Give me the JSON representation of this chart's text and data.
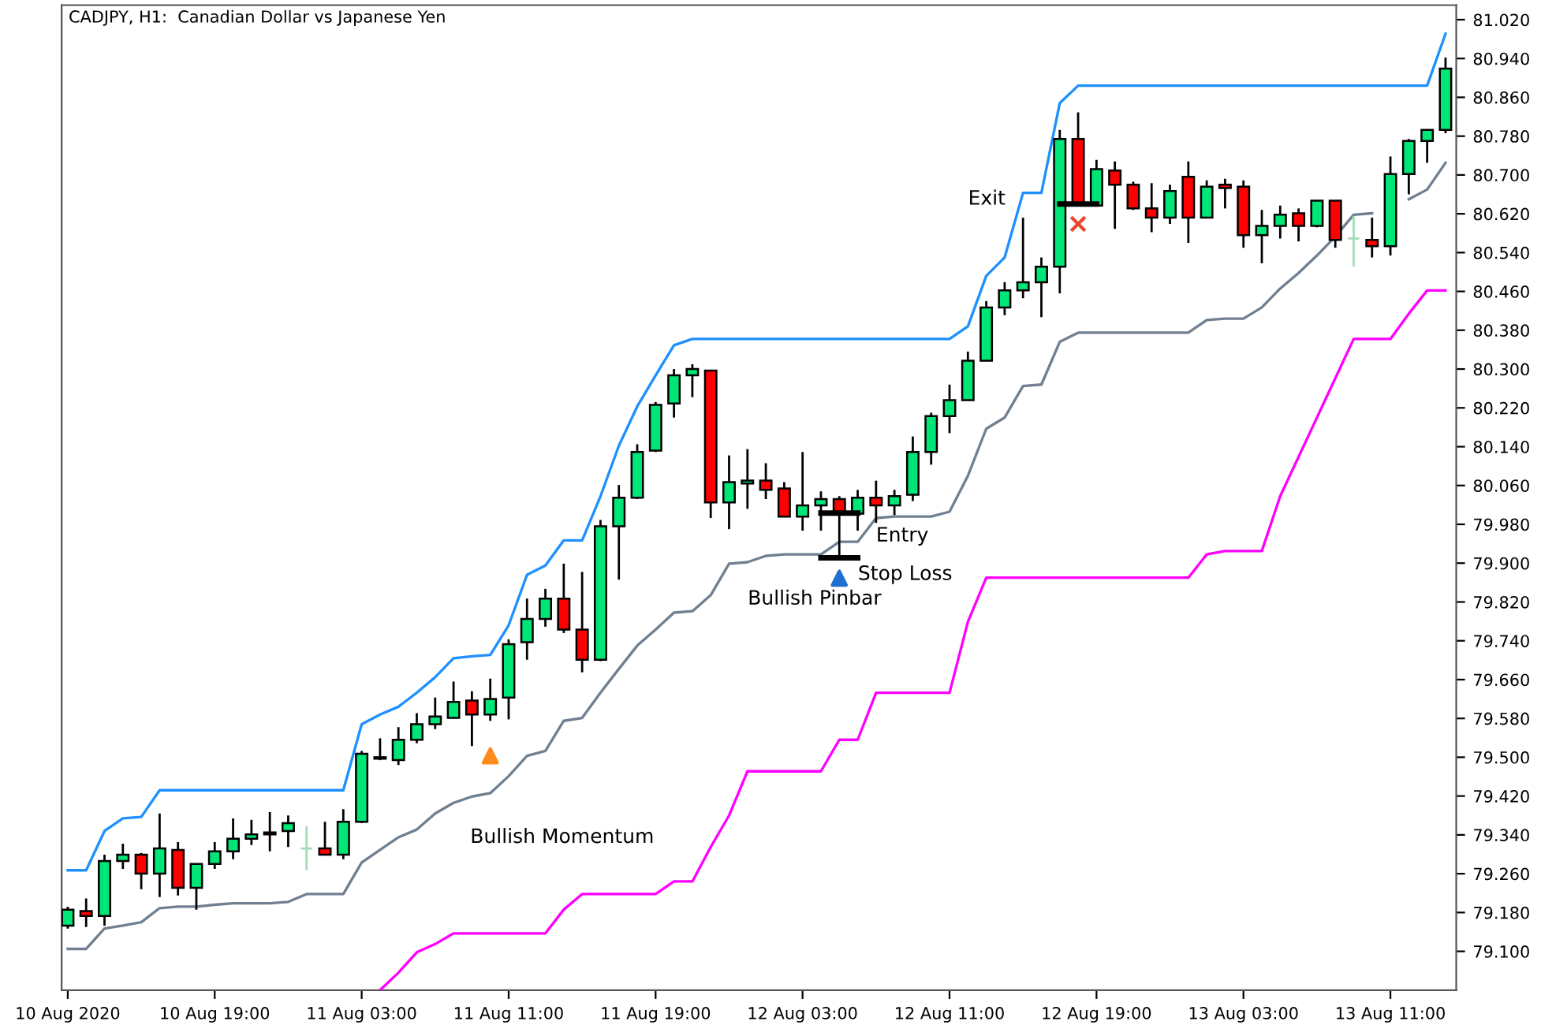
{
  "chart_data": {
    "type": "candlestick",
    "title": "CADJPY, H1:  Canadian Dollar vs Japanese Yen",
    "x": [
      "2020-08-10T11:00",
      "2020-08-10T12:00",
      "2020-08-10T13:00",
      "2020-08-10T14:00",
      "2020-08-10T15:00",
      "2020-08-10T16:00",
      "2020-08-10T17:00",
      "2020-08-10T18:00",
      "2020-08-10T19:00",
      "2020-08-10T20:00",
      "2020-08-10T21:00",
      "2020-08-10T22:00",
      "2020-08-10T23:00",
      "2020-08-11T00:00",
      "2020-08-11T01:00",
      "2020-08-11T02:00",
      "2020-08-11T03:00",
      "2020-08-11T04:00",
      "2020-08-11T05:00",
      "2020-08-11T06:00",
      "2020-08-11T07:00",
      "2020-08-11T08:00",
      "2020-08-11T09:00",
      "2020-08-11T10:00",
      "2020-08-11T11:00",
      "2020-08-11T12:00",
      "2020-08-11T13:00",
      "2020-08-11T14:00",
      "2020-08-11T15:00",
      "2020-08-11T16:00",
      "2020-08-11T17:00",
      "2020-08-11T18:00",
      "2020-08-11T19:00",
      "2020-08-11T20:00",
      "2020-08-11T21:00",
      "2020-08-11T22:00",
      "2020-08-11T23:00",
      "2020-08-12T00:00",
      "2020-08-12T01:00",
      "2020-08-12T02:00",
      "2020-08-12T03:00",
      "2020-08-12T04:00",
      "2020-08-12T05:00",
      "2020-08-12T06:00",
      "2020-08-12T07:00",
      "2020-08-12T08:00",
      "2020-08-12T09:00",
      "2020-08-12T10:00",
      "2020-08-12T11:00",
      "2020-08-12T12:00",
      "2020-08-12T13:00",
      "2020-08-12T14:00",
      "2020-08-12T15:00",
      "2020-08-12T16:00",
      "2020-08-12T17:00",
      "2020-08-12T18:00",
      "2020-08-12T19:00",
      "2020-08-12T20:00",
      "2020-08-12T21:00",
      "2020-08-12T22:00",
      "2020-08-12T23:00",
      "2020-08-13T00:00",
      "2020-08-13T01:00",
      "2020-08-13T02:00",
      "2020-08-13T03:00",
      "2020-08-13T04:00",
      "2020-08-13T05:00",
      "2020-08-13T06:00",
      "2020-08-13T07:00",
      "2020-08-13T08:00",
      "2020-08-13T09:00",
      "2020-08-13T10:00",
      "2020-08-13T11:00",
      "2020-08-13T12:00",
      "2020-08-13T13:00",
      "2020-08-13T14:00"
    ],
    "ohlc": [
      [
        79.153,
        79.192,
        79.147,
        79.186
      ],
      [
        79.183,
        79.209,
        79.15,
        79.173
      ],
      [
        79.173,
        79.299,
        79.153,
        79.286
      ],
      [
        79.286,
        79.322,
        79.27,
        79.299
      ],
      [
        79.299,
        79.303,
        79.228,
        79.26
      ],
      [
        79.26,
        79.384,
        79.212,
        79.312
      ],
      [
        79.309,
        79.325,
        79.215,
        79.231
      ],
      [
        79.231,
        79.28,
        79.186,
        79.28
      ],
      [
        79.28,
        79.325,
        79.27,
        79.306
      ],
      [
        79.306,
        79.374,
        79.29,
        79.332
      ],
      [
        79.332,
        79.371,
        79.319,
        79.341
      ],
      [
        79.341,
        79.387,
        79.306,
        79.345
      ],
      [
        79.348,
        79.38,
        79.315,
        79.364
      ],
      [
        79.312,
        79.358,
        79.267,
        79.312
      ],
      [
        79.312,
        79.367,
        79.299,
        79.299
      ],
      [
        79.299,
        79.393,
        79.29,
        79.367
      ],
      [
        79.367,
        79.513,
        79.364,
        79.507
      ],
      [
        79.5,
        79.539,
        79.494,
        79.497
      ],
      [
        79.494,
        79.562,
        79.484,
        79.536
      ],
      [
        79.536,
        79.591,
        79.529,
        79.568
      ],
      [
        79.568,
        79.623,
        79.558,
        79.584
      ],
      [
        79.581,
        79.656,
        79.581,
        79.614
      ],
      [
        79.617,
        79.636,
        79.523,
        79.588
      ],
      [
        79.588,
        79.662,
        79.575,
        79.62
      ],
      [
        79.623,
        79.743,
        79.578,
        79.733
      ],
      [
        79.737,
        79.827,
        79.701,
        79.785
      ],
      [
        79.785,
        79.847,
        79.769,
        79.827
      ],
      [
        79.827,
        79.899,
        79.756,
        79.763
      ],
      [
        79.763,
        79.882,
        79.675,
        79.701
      ],
      [
        79.701,
        79.989,
        79.698,
        79.976
      ],
      [
        79.976,
        80.061,
        79.866,
        80.035
      ],
      [
        80.035,
        80.145,
        80.032,
        80.129
      ],
      [
        80.132,
        80.232,
        80.129,
        80.226
      ],
      [
        80.229,
        80.3,
        80.2,
        80.287
      ],
      [
        80.287,
        80.31,
        80.242,
        80.3
      ],
      [
        80.297,
        80.297,
        79.993,
        80.025
      ],
      [
        80.025,
        80.122,
        79.97,
        80.067
      ],
      [
        80.064,
        80.135,
        80.012,
        80.07
      ],
      [
        80.07,
        80.106,
        80.032,
        80.051
      ],
      [
        80.054,
        80.067,
        79.996,
        79.996
      ],
      [
        79.996,
        80.129,
        79.967,
        80.019
      ],
      [
        80.019,
        80.048,
        79.967,
        80.032
      ],
      [
        80.032,
        80.038,
        79.915,
        80.006
      ],
      [
        80.002,
        80.051,
        79.967,
        80.035
      ],
      [
        80.035,
        80.07,
        79.983,
        80.019
      ],
      [
        80.019,
        80.051,
        79.999,
        80.038
      ],
      [
        80.041,
        80.161,
        80.028,
        80.129
      ],
      [
        80.129,
        80.21,
        80.103,
        80.203
      ],
      [
        80.203,
        80.268,
        80.168,
        80.236
      ],
      [
        80.236,
        80.336,
        80.236,
        80.317
      ],
      [
        80.317,
        80.44,
        80.317,
        80.427
      ],
      [
        80.427,
        80.479,
        80.411,
        80.462
      ],
      [
        80.462,
        80.612,
        80.446,
        80.479
      ],
      [
        80.479,
        80.53,
        80.407,
        80.511
      ],
      [
        80.511,
        80.793,
        80.456,
        80.774
      ],
      [
        80.774,
        80.829,
        80.641,
        80.641
      ],
      [
        80.637,
        80.731,
        80.637,
        80.712
      ],
      [
        80.709,
        80.728,
        80.589,
        80.68
      ],
      [
        80.68,
        80.686,
        80.628,
        80.631
      ],
      [
        80.631,
        80.683,
        80.582,
        80.612
      ],
      [
        80.612,
        80.68,
        80.599,
        80.667
      ],
      [
        80.696,
        80.728,
        80.56,
        80.612
      ],
      [
        80.612,
        80.689,
        80.612,
        80.676
      ],
      [
        80.68,
        80.692,
        80.631,
        80.673
      ],
      [
        80.676,
        80.689,
        80.55,
        80.576
      ],
      [
        80.576,
        80.628,
        80.518,
        80.595
      ],
      [
        80.595,
        80.637,
        80.569,
        80.618
      ],
      [
        80.621,
        80.631,
        80.563,
        80.595
      ],
      [
        80.595,
        80.647,
        80.592,
        80.647
      ],
      [
        80.647,
        80.647,
        80.55,
        80.566
      ],
      [
        80.569,
        80.615,
        80.511,
        80.569
      ],
      [
        80.566,
        80.612,
        80.53,
        80.553
      ],
      [
        80.553,
        80.738,
        80.534,
        80.702
      ],
      [
        80.702,
        80.774,
        80.66,
        80.77
      ],
      [
        80.77,
        80.793,
        80.725,
        80.793
      ],
      [
        80.793,
        80.942,
        80.786,
        80.919
      ]
    ],
    "colors": [
      "#00e676",
      "#ff0000",
      "#00e676",
      "#00e676",
      "#ff0000",
      "#00e676",
      "#ff0000",
      "#00e676",
      "#00e676",
      "#00e676",
      "#00e676",
      "#00e676",
      "#00e676",
      "#a3dcb8",
      "#ff0000",
      "#00e676",
      "#00e676",
      "#ff0000",
      "#00e676",
      "#00e676",
      "#00e676",
      "#00e676",
      "#ff0000",
      "#00e676",
      "#00e676",
      "#00e676",
      "#00e676",
      "#ff0000",
      "#ff0000",
      "#00e676",
      "#00e676",
      "#00e676",
      "#00e676",
      "#00e676",
      "#00e676",
      "#ff0000",
      "#00e676",
      "#00e676",
      "#ff0000",
      "#ff0000",
      "#00e676",
      "#00e676",
      "#ff0000",
      "#00e676",
      "#ff0000",
      "#00e676",
      "#00e676",
      "#00e676",
      "#00e676",
      "#00e676",
      "#00e676",
      "#00e676",
      "#00e676",
      "#00e676",
      "#00e676",
      "#ff0000",
      "#00e676",
      "#ff0000",
      "#ff0000",
      "#ff0000",
      "#00e676",
      "#ff0000",
      "#00e676",
      "#ff0000",
      "#ff0000",
      "#00e676",
      "#00e676",
      "#ff0000",
      "#00e676",
      "#ff0000",
      "#a3dcb8",
      "#ff0000",
      "#00e676",
      "#00e676",
      "#00e676",
      "#00e676"
    ],
    "series": [
      {
        "type": "line",
        "color": "#1e90ff",
        "values": [
          79.267,
          79.267,
          79.348,
          79.374,
          79.377,
          79.432,
          79.432,
          79.432,
          79.432,
          79.432,
          79.432,
          79.432,
          79.432,
          79.432,
          79.432,
          79.432,
          79.568,
          79.588,
          79.604,
          79.633,
          79.665,
          79.704,
          79.708,
          79.711,
          79.772,
          79.876,
          79.895,
          79.947,
          79.947,
          80.038,
          80.142,
          80.223,
          80.287,
          80.349,
          80.362,
          80.362,
          80.362,
          80.362,
          80.362,
          80.362,
          80.362,
          80.362,
          80.362,
          80.362,
          80.362,
          80.362,
          80.362,
          80.362,
          80.362,
          80.388,
          80.492,
          80.53,
          80.663,
          80.663,
          80.848,
          80.884,
          80.884,
          80.884,
          80.884,
          80.884,
          80.884,
          80.884,
          80.884,
          80.884,
          80.884,
          80.884,
          80.884,
          80.884,
          80.884,
          80.884,
          80.884,
          80.884,
          80.884,
          80.884,
          80.884,
          80.991
        ]
      },
      {
        "type": "line",
        "color": "#708090",
        "values": [
          79.105,
          79.105,
          79.147,
          79.153,
          79.16,
          79.189,
          79.192,
          79.192,
          79.196,
          79.199,
          79.199,
          79.199,
          79.202,
          79.218,
          79.218,
          79.218,
          79.283,
          79.309,
          79.335,
          79.351,
          79.384,
          79.406,
          79.419,
          79.426,
          79.461,
          79.503,
          79.513,
          79.575,
          79.581,
          79.633,
          79.682,
          79.73,
          79.763,
          79.798,
          79.801,
          79.834,
          79.899,
          79.902,
          79.915,
          79.918,
          79.918,
          79.918,
          79.944,
          79.944,
          79.993,
          79.996,
          79.996,
          79.996,
          80.006,
          80.08,
          80.177,
          80.2,
          80.265,
          80.268,
          80.356,
          80.375,
          80.375,
          80.375,
          80.375,
          80.375,
          80.375,
          80.375,
          80.401,
          80.404,
          80.404,
          80.427,
          80.466,
          80.498,
          80.534,
          80.573,
          80.618,
          80.621,
          null,
          80.65,
          80.67,
          80.725
        ]
      },
      {
        "type": "line",
        "color": "#ff00ff",
        "values": [
          null,
          null,
          null,
          null,
          null,
          null,
          null,
          null,
          null,
          null,
          null,
          null,
          null,
          null,
          null,
          null,
          null,
          79.02,
          79.056,
          79.098,
          79.115,
          79.137,
          79.137,
          79.137,
          79.137,
          79.137,
          79.137,
          79.186,
          79.218,
          79.218,
          79.218,
          79.218,
          79.218,
          79.244,
          79.244,
          79.315,
          79.38,
          79.471,
          79.471,
          79.471,
          79.471,
          79.471,
          79.536,
          79.536,
          79.633,
          79.633,
          79.633,
          79.633,
          79.633,
          79.779,
          79.87,
          79.87,
          79.87,
          79.87,
          79.87,
          79.87,
          79.87,
          79.87,
          79.87,
          79.87,
          79.87,
          79.87,
          79.918,
          79.925,
          79.925,
          79.925,
          80.038,
          80.119,
          80.2,
          80.281,
          80.362,
          80.362,
          80.362,
          80.414,
          80.462,
          80.462
        ]
      },
      {
        "type": "line",
        "color": "#000000",
        "x": [
          "2020-08-12T04:00",
          "2020-08-12T06:00"
        ],
        "values": [
          80.003,
          80.003
        ]
      },
      {
        "type": "line",
        "color": "#000000",
        "x": [
          "2020-08-12T04:00",
          "2020-08-12T06:00"
        ],
        "values": [
          79.911,
          79.911
        ]
      },
      {
        "type": "line",
        "color": "#000000",
        "x": [
          "2020-08-12T17:00",
          "2020-08-12T19:00"
        ],
        "values": [
          80.64,
          80.64
        ]
      },
      {
        "type": "scatter",
        "color": "#ff8c1a",
        "marker": "triangle",
        "x": [
          "2020-08-11T10:00"
        ],
        "values": [
          79.503
        ]
      },
      {
        "type": "scatter",
        "color": "#1f6fd0",
        "marker": "triangle",
        "x": [
          "2020-08-12T05:00"
        ],
        "values": [
          79.869
        ]
      },
      {
        "type": "scatter",
        "color": "#e8452c",
        "marker": "cross",
        "x": [
          "2020-08-12T18:00"
        ],
        "values": [
          80.599
        ]
      }
    ],
    "annotations": [
      "Bullish Momentum",
      "Bullish Pinbar",
      "Stop Loss",
      "Entry",
      "Exit"
    ],
    "xlim": [
      "2020-08-10T10:40",
      "2020-08-13T14:35"
    ],
    "xticks": [
      {
        "value": "2020-08-10T11:00",
        "label": "10 Aug 2020"
      },
      {
        "value": "2020-08-10T19:00",
        "label": "10 Aug 19:00"
      },
      {
        "value": "2020-08-11T03:00",
        "label": "11 Aug 03:00"
      },
      {
        "value": "2020-08-11T11:00",
        "label": "11 Aug 11:00"
      },
      {
        "value": "2020-08-11T19:00",
        "label": "11 Aug 19:00"
      },
      {
        "value": "2020-08-12T03:00",
        "label": "12 Aug 03:00"
      },
      {
        "value": "2020-08-12T11:00",
        "label": "12 Aug 11:00"
      },
      {
        "value": "2020-08-12T19:00",
        "label": "12 Aug 19:00"
      },
      {
        "value": "2020-08-13T03:00",
        "label": "13 Aug 03:00"
      },
      {
        "value": "2020-08-13T11:00",
        "label": "13 Aug 11:00"
      }
    ],
    "ylim": [
      79.02,
      81.05
    ],
    "yticks": [
      {
        "value": 79.1,
        "label": "79.100"
      },
      {
        "value": 79.18,
        "label": "79.180"
      },
      {
        "value": 79.26,
        "label": "79.260"
      },
      {
        "value": 79.34,
        "label": "79.340"
      },
      {
        "value": 79.42,
        "label": "79.420"
      },
      {
        "value": 79.5,
        "label": "79.500"
      },
      {
        "value": 79.58,
        "label": "79.580"
      },
      {
        "value": 79.66,
        "label": "79.660"
      },
      {
        "value": 79.74,
        "label": "79.740"
      },
      {
        "value": 79.82,
        "label": "79.820"
      },
      {
        "value": 79.9,
        "label": "79.900"
      },
      {
        "value": 79.98,
        "label": "79.980"
      },
      {
        "value": 80.06,
        "label": "80.060"
      },
      {
        "value": 80.14,
        "label": "80.140"
      },
      {
        "value": 80.22,
        "label": "80.220"
      },
      {
        "value": 80.3,
        "label": "80.300"
      },
      {
        "value": 80.38,
        "label": "80.380"
      },
      {
        "value": 80.46,
        "label": "80.460"
      },
      {
        "value": 80.54,
        "label": "80.540"
      },
      {
        "value": 80.62,
        "label": "80.620"
      },
      {
        "value": 80.7,
        "label": "80.700"
      },
      {
        "value": 80.78,
        "label": "80.780"
      },
      {
        "value": 80.86,
        "label": "80.860"
      },
      {
        "value": 80.94,
        "label": "80.940"
      },
      {
        "value": 81.02,
        "label": "81.020"
      }
    ],
    "grid": false,
    "legend": false
  }
}
